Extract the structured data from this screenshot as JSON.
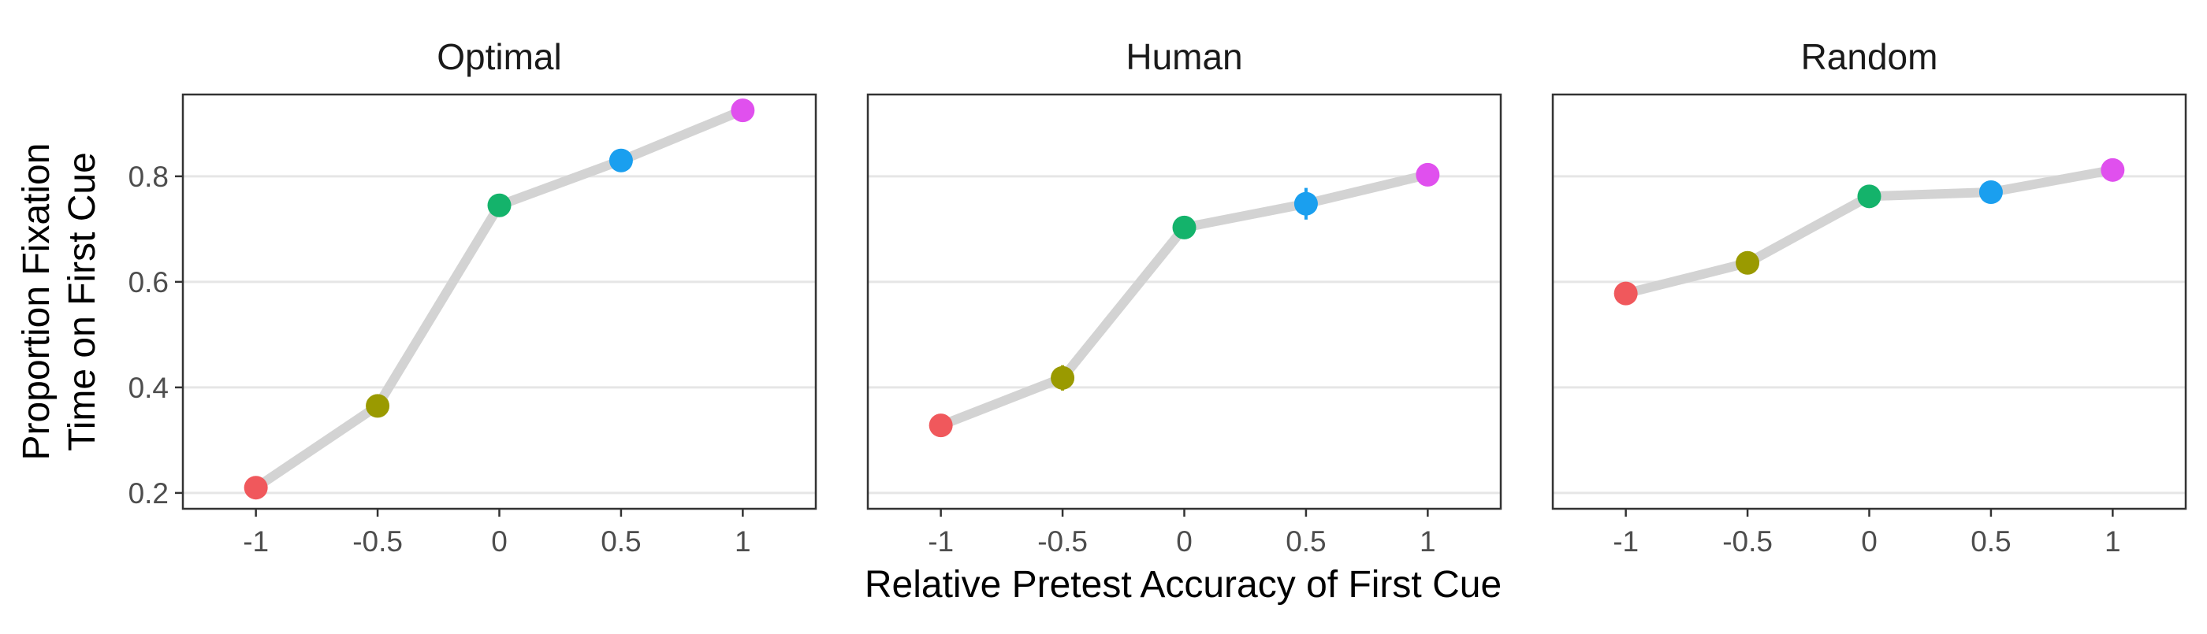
{
  "chart_data": {
    "type": "line",
    "xlabel": "Relative Pretest Accuracy of First Cue",
    "ylabel_lines": [
      "Proportion Fixation",
      "Time on First Cue"
    ],
    "x": [
      -1,
      -0.5,
      0,
      0.5,
      1
    ],
    "x_tick_labels": [
      "-1",
      "-0.5",
      "0",
      "0.5",
      "1"
    ],
    "y_ticks": [
      0.2,
      0.4,
      0.6,
      0.8
    ],
    "y_tick_labels": [
      "0.2",
      "0.4",
      "0.6",
      "0.8"
    ],
    "xlim": [
      -1.3,
      1.3
    ],
    "ylim": [
      0.17,
      0.955
    ],
    "grid": "horizontal major lines",
    "line_color": "#d3d3d3",
    "point_colors": [
      "#f0585c",
      "#9a9a00",
      "#14b36b",
      "#1a9fef",
      "#e050ee"
    ],
    "panels": [
      {
        "title": "Optimal",
        "y": [
          0.21,
          0.365,
          0.745,
          0.83,
          0.925
        ],
        "err": [
          0,
          0,
          0,
          0,
          0
        ]
      },
      {
        "title": "Human",
        "y": [
          0.328,
          0.418,
          0.703,
          0.748,
          0.803
        ],
        "err": [
          0,
          0.024,
          0,
          0.03,
          0
        ]
      },
      {
        "title": "Random",
        "y": [
          0.578,
          0.636,
          0.762,
          0.77,
          0.812
        ],
        "err": [
          0,
          0,
          0,
          0,
          0
        ]
      }
    ]
  }
}
